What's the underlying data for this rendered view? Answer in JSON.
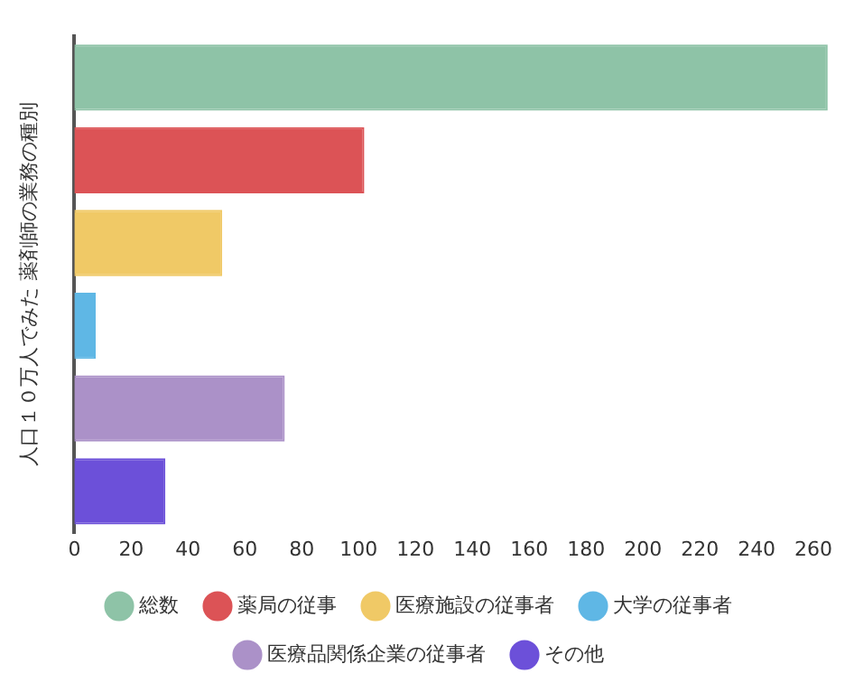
{
  "chart_data": {
    "type": "bar",
    "orientation": "horizontal",
    "ylabel": "人口１０万人でみた 薬剤師の業務の種別",
    "categories": [
      null,
      null,
      null,
      null,
      null,
      null
    ],
    "series": [
      {
        "name": "総数",
        "color": "#8ec3a7",
        "values": [
          265,
          null,
          null,
          null,
          null,
          null
        ]
      },
      {
        "name": "薬局の従事",
        "color": "#dc5356",
        "values": [
          null,
          102,
          null,
          null,
          null,
          null
        ]
      },
      {
        "name": "医療施設の従事者",
        "color": "#f0c966",
        "values": [
          null,
          null,
          52,
          null,
          null,
          null
        ]
      },
      {
        "name": "大学の従事者",
        "color": "#5fb7e5",
        "values": [
          null,
          null,
          null,
          7.5,
          null,
          null
        ]
      },
      {
        "name": "医療品関係企業の従事者",
        "color": "#ab91c8",
        "values": [
          null,
          null,
          null,
          null,
          74,
          null
        ]
      },
      {
        "name": "その他",
        "color": "#6c50d9",
        "values": [
          null,
          null,
          null,
          null,
          null,
          32
        ]
      }
    ],
    "xlim": [
      0,
      266
    ],
    "xticks": [
      0,
      20,
      40,
      60,
      80,
      100,
      120,
      140,
      160,
      180,
      200,
      220,
      240,
      260
    ],
    "grid": false,
    "legend": "bottom"
  }
}
